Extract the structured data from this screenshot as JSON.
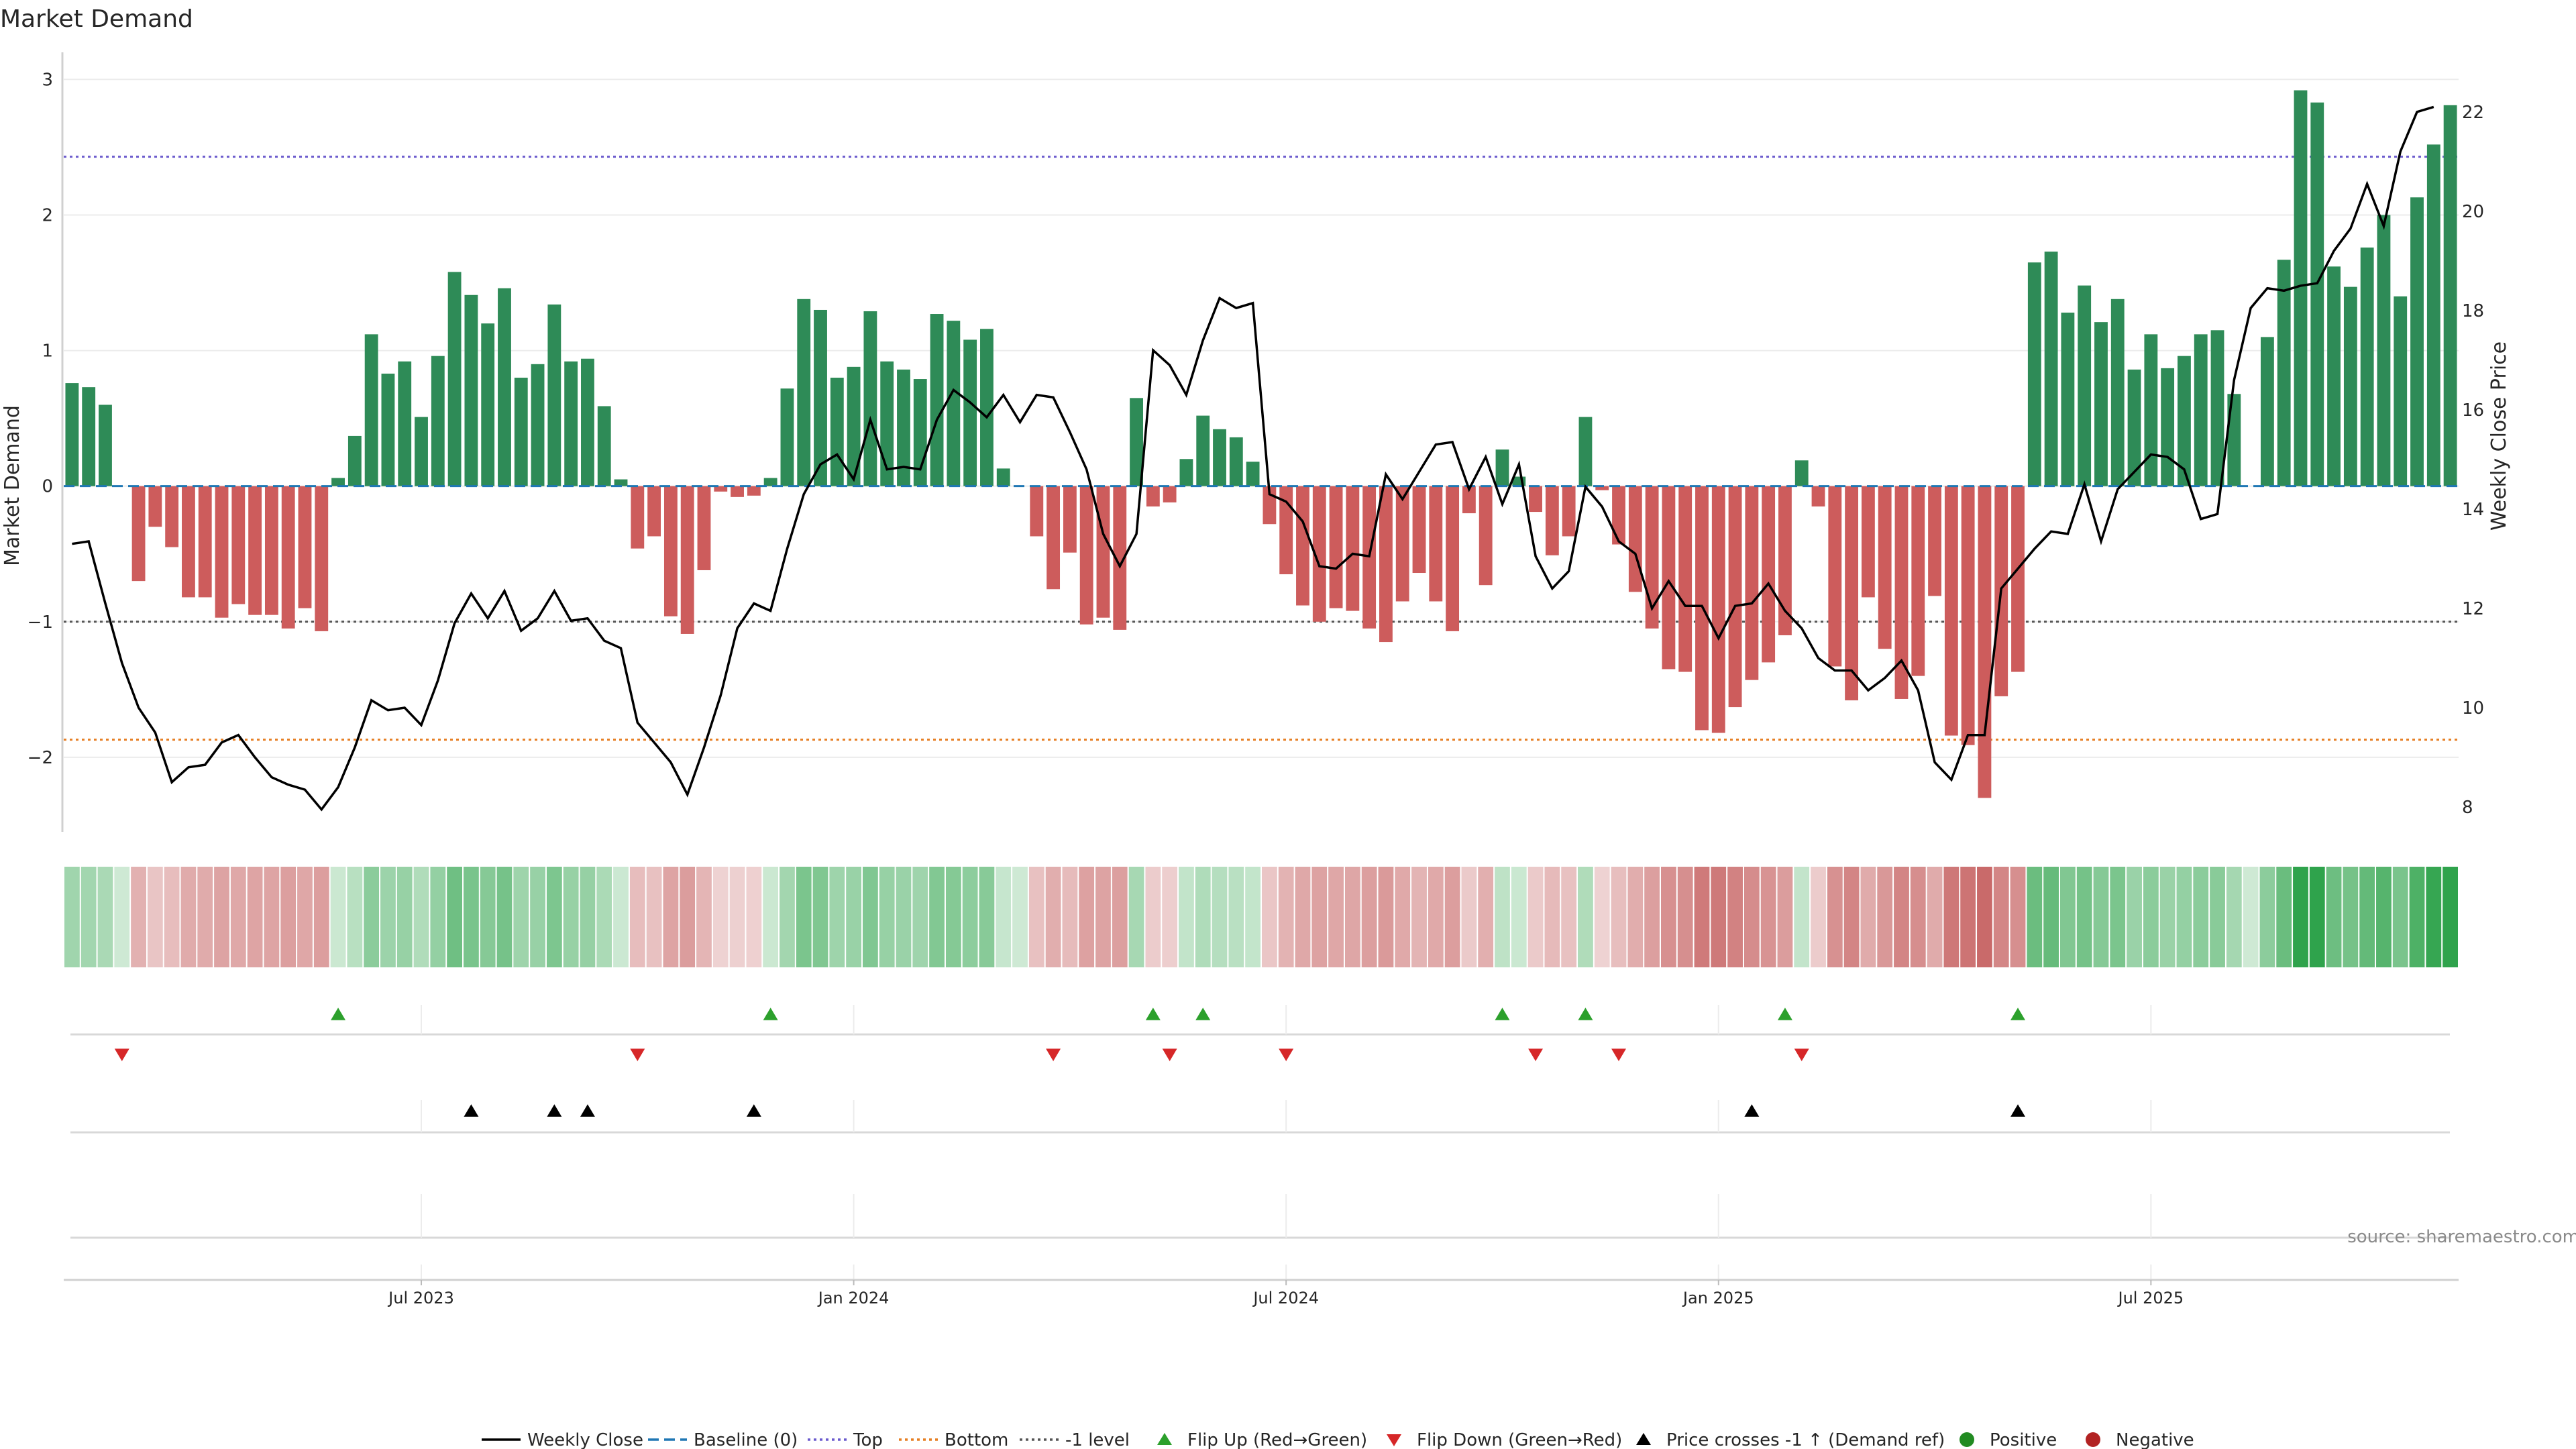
{
  "chart_data": {
    "type": "bar",
    "title": "Market Demand",
    "ylabel": "Market Demand",
    "y2label": "Weekly Close Price",
    "source_note": "source: sharemaestro.com",
    "ylim": [
      -2.55,
      3.2
    ],
    "y2lim": [
      7.5,
      23.2
    ],
    "yticks": [
      -2,
      -1,
      0,
      1,
      2,
      3
    ],
    "y2ticks": [
      8,
      10,
      12,
      14,
      16,
      18,
      20,
      22
    ],
    "reference_levels": {
      "top": 2.43,
      "bottom": -1.87,
      "minus_one": -1
    },
    "colors": {
      "positive": "#2e8b57",
      "negative": "#cd5c5c",
      "weekly_close": "#000000",
      "baseline": "#1f77b4",
      "top": "#6a5acd",
      "bottom": "#e67e22",
      "minus_one": "#555555",
      "flip_up": "#2ca02c",
      "flip_down": "#d62728",
      "price_cross": "#000000",
      "legend_positive": "#228b22",
      "legend_negative": "#b22222"
    },
    "x_ticks": [
      {
        "label": "Jul 2023",
        "week": 21.5
      },
      {
        "label": "Jan 2024",
        "week": 47.5
      },
      {
        "label": "Jul 2024",
        "week": 73.5
      },
      {
        "label": "Jan 2025",
        "week": 99.5
      },
      {
        "label": "Jul 2025",
        "week": 125.5
      }
    ],
    "market_demand": [
      0.76,
      0.73,
      0.6,
      0,
      -0.7,
      -0.3,
      -0.45,
      -0.82,
      -0.82,
      -0.97,
      -0.87,
      -0.95,
      -0.95,
      -1.05,
      -0.9,
      -1.07,
      0.06,
      0.37,
      1.12,
      0.83,
      0.92,
      0.51,
      0.96,
      1.58,
      1.41,
      1.2,
      1.46,
      0.8,
      0.9,
      1.34,
      0.92,
      0.94,
      0.59,
      0.05,
      -0.46,
      -0.37,
      -0.96,
      -1.09,
      -0.62,
      -0.04,
      -0.08,
      -0.07,
      0.06,
      0.72,
      1.38,
      1.3,
      0.8,
      0.88,
      1.29,
      0.92,
      0.86,
      0.79,
      1.27,
      1.22,
      1.08,
      1.16,
      0.13,
      0,
      -0.37,
      -0.76,
      -0.49,
      -1.02,
      -0.97,
      -1.06,
      0.65,
      -0.15,
      -0.12,
      0.2,
      0.52,
      0.42,
      0.36,
      0.18,
      -0.28,
      -0.65,
      -0.88,
      -1,
      -0.9,
      -0.92,
      -1.05,
      -1.15,
      -0.85,
      -0.64,
      -0.85,
      -1.07,
      -0.2,
      -0.73,
      0.27,
      0.07,
      -0.19,
      -0.51,
      -0.37,
      0.51,
      -0.03,
      -0.43,
      -0.78,
      -1.05,
      -1.35,
      -1.37,
      -1.8,
      -1.82,
      -1.63,
      -1.43,
      -1.3,
      -1.1,
      0.19,
      -0.15,
      -1.33,
      -1.58,
      -0.82,
      -1.2,
      -1.57,
      -1.4,
      -0.81,
      -1.84,
      -1.91,
      -2.3,
      -1.55,
      -1.37,
      1.65,
      1.73,
      1.28,
      1.48,
      1.21,
      1.38,
      0.86,
      1.12,
      0.87,
      0.96,
      1.12,
      1.15,
      0.68,
      0,
      1.1,
      1.67,
      2.92,
      2.83,
      1.62,
      1.47,
      1.76,
      2,
      1.4,
      2.13,
      2.52,
      2.81
    ],
    "weekly_close": [
      13.3,
      13.35,
      12.1,
      10.9,
      10,
      9.5,
      8.5,
      8.8,
      8.85,
      9.3,
      9.45,
      9,
      8.6,
      8.45,
      8.35,
      7.95,
      8.4,
      9.2,
      10.15,
      9.95,
      10,
      9.65,
      10.55,
      11.7,
      12.3,
      11.8,
      12.35,
      11.55,
      11.8,
      12.35,
      11.75,
      11.8,
      11.35,
      11.2,
      9.7,
      9.3,
      8.9,
      8.25,
      9.2,
      10.25,
      11.6,
      12.1,
      11.95,
      13.2,
      14.3,
      14.9,
      15.1,
      14.6,
      15.8,
      14.8,
      14.85,
      14.8,
      15.8,
      16.4,
      16.15,
      15.85,
      16.3,
      15.75,
      16.3,
      16.25,
      15.55,
      14.8,
      13.5,
      12.85,
      13.5,
      17.2,
      16.9,
      16.3,
      17.4,
      18.25,
      18.05,
      18.15,
      14.3,
      14.15,
      13.75,
      12.85,
      12.8,
      13.1,
      13.05,
      14.7,
      14.2,
      14.75,
      15.3,
      15.35,
      14.4,
      15.05,
      14.1,
      14.9,
      13.05,
      12.4,
      12.75,
      14.45,
      14.05,
      13.35,
      13.1,
      12,
      12.55,
      12.05,
      12.05,
      11.4,
      12.05,
      12.1,
      12.5,
      11.95,
      11.6,
      11,
      10.75,
      10.75,
      10.35,
      10.6,
      10.95,
      10.35,
      8.9,
      8.55,
      9.45,
      9.45,
      12.4,
      12.8,
      13.2,
      13.55,
      13.5,
      14.5,
      13.35,
      14.4,
      14.75,
      15.1,
      15.05,
      14.8,
      13.8,
      13.9,
      16.6,
      18.05,
      18.45,
      18.4,
      18.5,
      18.55,
      19.2,
      19.65,
      20.55,
      19.7,
      21.2,
      22,
      22.1
    ],
    "markers": {
      "flip_up_weeks": [
        16,
        42,
        65,
        68,
        86,
        91,
        103,
        117
      ],
      "flip_down_weeks": [
        3,
        34,
        59,
        66,
        73,
        88,
        93,
        104
      ],
      "price_cross_weeks": [
        24,
        29,
        31,
        41,
        101,
        117
      ]
    }
  },
  "legend": {
    "weekly_close": "Weekly Close",
    "baseline": "Baseline (0)",
    "top": "Top",
    "bottom": "Bottom",
    "minus_one": "-1 level",
    "flip_up": "Flip Up (Red→Green)",
    "flip_down": "Flip Down (Green→Red)",
    "price_cross": "Price crosses -1 ↑ (Demand ref)",
    "positive": "Positive",
    "negative": "Negative"
  }
}
